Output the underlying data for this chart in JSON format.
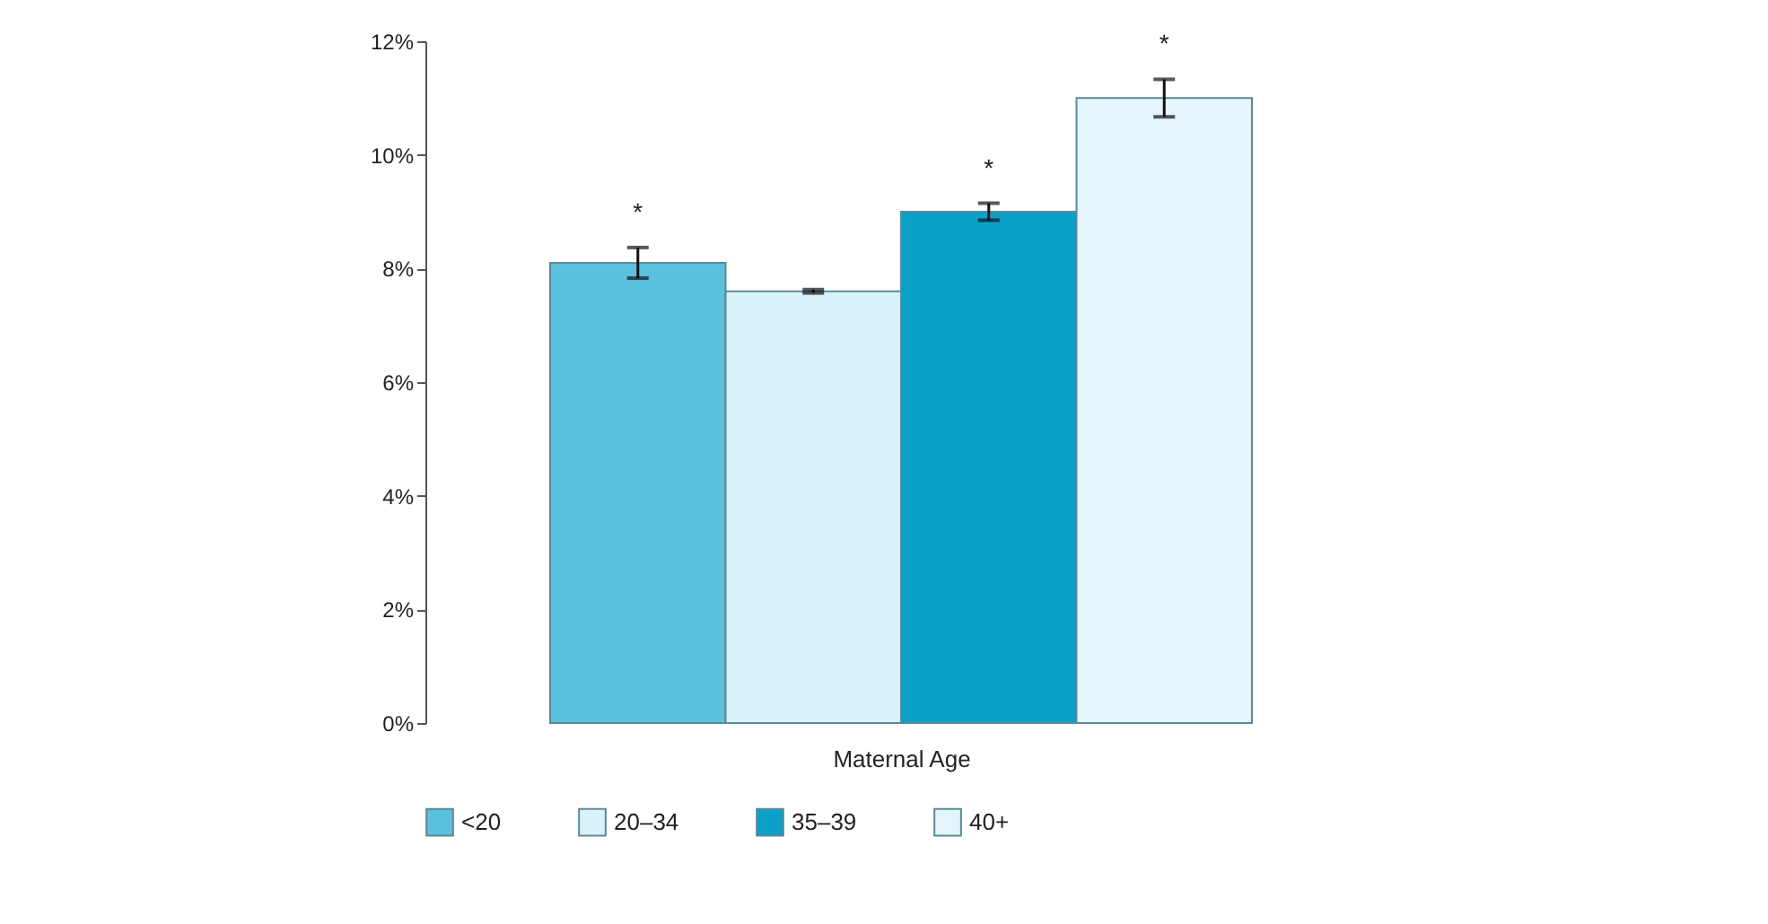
{
  "chart_data": {
    "type": "bar",
    "xlabel": "Maternal Age",
    "categories": [
      null
    ],
    "series": [
      {
        "name": "<20",
        "color": "#5bc0de",
        "values": [
          8.1
        ],
        "errors": [
          0.27
        ],
        "value_labels": [
          "*"
        ]
      },
      {
        "name": "20–34",
        "color": "#d9f1f8",
        "values": [
          7.6
        ],
        "errors": [
          0.03
        ],
        "value_labels": [
          null
        ]
      },
      {
        "name": "35–39",
        "color": "#0aa0c8",
        "values": [
          9.0
        ],
        "errors": [
          0.15
        ],
        "value_labels": [
          "*"
        ]
      },
      {
        "name": "40+",
        "color": "#e3f5fb",
        "values": [
          11.0
        ],
        "errors": [
          0.33
        ],
        "value_labels": [
          "*"
        ]
      }
    ],
    "ylim": [
      0,
      12
    ],
    "yticks": [
      {
        "value": 0,
        "label": "0%"
      },
      {
        "value": 2,
        "label": "2%"
      },
      {
        "value": 4,
        "label": "4%"
      },
      {
        "value": 6,
        "label": "6%"
      },
      {
        "value": 8,
        "label": "8%"
      },
      {
        "value": 10,
        "label": "10%"
      },
      {
        "value": 12,
        "label": "12%"
      }
    ],
    "tick_labels": "y",
    "grid": false,
    "legend": "bottom"
  }
}
